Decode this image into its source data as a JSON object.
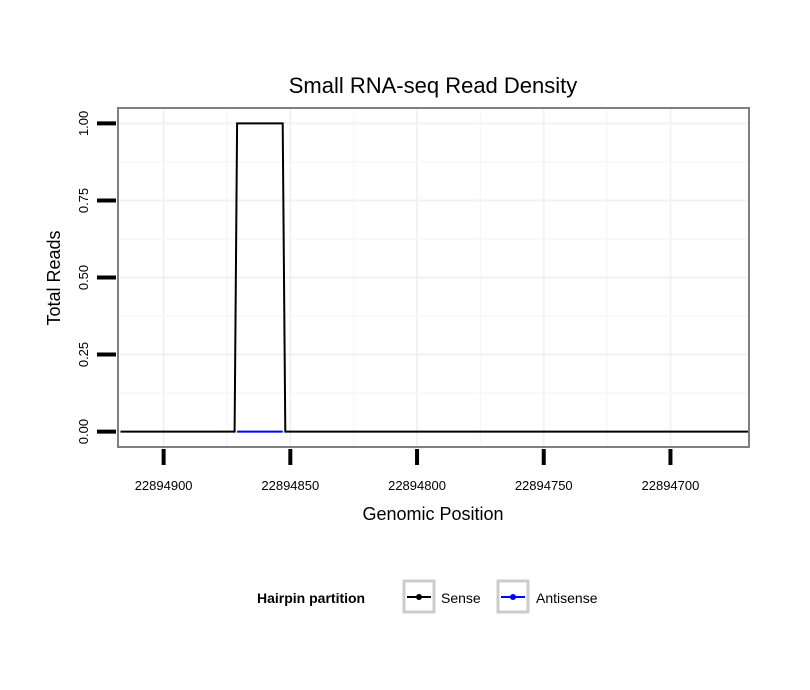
{
  "chart_data": {
    "type": "line",
    "title": "Small RNA-seq Read Density",
    "xlabel": "Genomic Position",
    "ylabel": "Total Reads",
    "x_reversed": true,
    "xlim": [
      22894918,
      22894669
    ],
    "ylim": [
      -0.05,
      1.05
    ],
    "x_ticks": [
      22894900,
      22894850,
      22894800,
      22894750,
      22894700
    ],
    "x_tick_labels": [
      "22894900",
      "22894850",
      "22894800",
      "22894750",
      "22894700"
    ],
    "y_ticks": [
      0,
      0.25,
      0.5,
      0.75,
      1.0
    ],
    "y_tick_labels": [
      "0.00",
      "0.25",
      "0.50",
      "0.75",
      "1.00"
    ],
    "grid": true,
    "legend": {
      "title": "Hairpin partition",
      "placement": "bottom"
    },
    "series": [
      {
        "name": "Sense",
        "color": "#000000",
        "points": [
          {
            "x": 22894917,
            "y": 0
          },
          {
            "x": 22894872,
            "y": 0
          },
          {
            "x": 22894871,
            "y": 1
          },
          {
            "x": 22894853,
            "y": 1
          },
          {
            "x": 22894852,
            "y": 0
          },
          {
            "x": 22894669,
            "y": 0
          }
        ]
      },
      {
        "name": "Antisense",
        "color": "#0000ff",
        "points": [
          {
            "x": 22894871,
            "y": 0
          },
          {
            "x": 22894853,
            "y": 0
          }
        ]
      }
    ]
  }
}
